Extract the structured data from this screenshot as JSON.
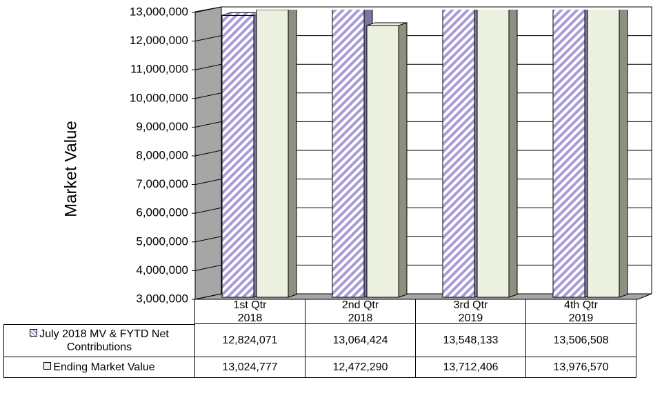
{
  "chart_data": {
    "type": "bar3d",
    "y_axis_label": "Market Value",
    "categories": [
      "1st Qtr\n2018",
      "2nd Qtr\n2018",
      "3rd Qtr\n2019",
      "4th Qtr\n2019"
    ],
    "series": [
      {
        "name": "July 2018 MV & FYTD Net Contributions",
        "color": "#a99bd6",
        "values": [
          12824071,
          13064424,
          13548133,
          13506508
        ],
        "value_labels": [
          "12,824,071",
          "13,064,424",
          "13,548,133",
          "13,506,508"
        ]
      },
      {
        "name": "Ending Market Value",
        "color": "#ebf1de",
        "values": [
          13024777,
          12472290,
          13712406,
          13976570
        ],
        "value_labels": [
          "13,024,777",
          "12,472,290",
          "13,712,406",
          "13,976,570"
        ]
      }
    ],
    "ylim": [
      3000000,
      13000000
    ],
    "yticks": [
      {
        "value": 3000000,
        "label": "3,000,000"
      },
      {
        "value": 4000000,
        "label": "4,000,000"
      },
      {
        "value": 5000000,
        "label": "5,000,000"
      },
      {
        "value": 6000000,
        "label": "6,000,000"
      },
      {
        "value": 7000000,
        "label": "7,000,000"
      },
      {
        "value": 8000000,
        "label": "8,000,000"
      },
      {
        "value": 9000000,
        "label": "9,000,000"
      },
      {
        "value": 10000000,
        "label": "10,000,000"
      },
      {
        "value": 11000000,
        "label": "11,000,000"
      },
      {
        "value": 12000000,
        "label": "12,000,000"
      },
      {
        "value": 13000000,
        "label": "13,000,000"
      }
    ],
    "grid": true
  }
}
